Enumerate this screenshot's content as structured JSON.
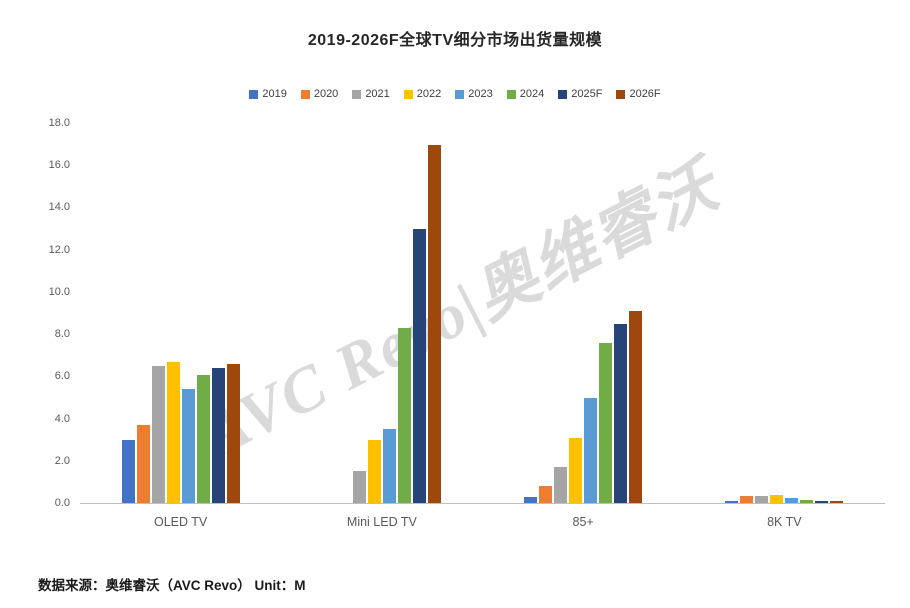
{
  "page": {
    "footer": "数据来源：奥维睿沃（AVC Revo） Unit：M",
    "watermark": "AVC Revo|奥维睿沃"
  },
  "chart_data": {
    "type": "bar",
    "title": "2019-2026F全球TV细分市场出货量规模",
    "categories": [
      "OLED TV",
      "Mini LED TV",
      "85+",
      "8K TV"
    ],
    "series": [
      {
        "name": "2019",
        "color": "#4472C4",
        "values": [
          3.0,
          0,
          0.3,
          0.1
        ]
      },
      {
        "name": "2020",
        "color": "#ED7D31",
        "values": [
          3.7,
          0,
          0.8,
          0.35
        ]
      },
      {
        "name": "2021",
        "color": "#A5A5A5",
        "values": [
          6.5,
          1.5,
          1.7,
          0.35
        ]
      },
      {
        "name": "2022",
        "color": "#FFC000",
        "values": [
          6.7,
          3.0,
          3.1,
          0.4
        ]
      },
      {
        "name": "2023",
        "color": "#5B9BD5",
        "values": [
          5.4,
          3.5,
          5.0,
          0.25
        ]
      },
      {
        "name": "2024",
        "color": "#70AD47",
        "values": [
          6.1,
          8.3,
          7.6,
          0.15
        ]
      },
      {
        "name": "2025F",
        "color": "#264478",
        "values": [
          6.4,
          13.0,
          8.5,
          0.1
        ]
      },
      {
        "name": "2026F",
        "color": "#9E480E",
        "values": [
          6.6,
          17.0,
          9.1,
          0.1
        ]
      }
    ],
    "ylim": [
      0,
      18
    ],
    "ytick_step": 2,
    "ytick_decimals": 1,
    "legend_position": "top",
    "grid": false,
    "xlabel": "",
    "ylabel": ""
  }
}
